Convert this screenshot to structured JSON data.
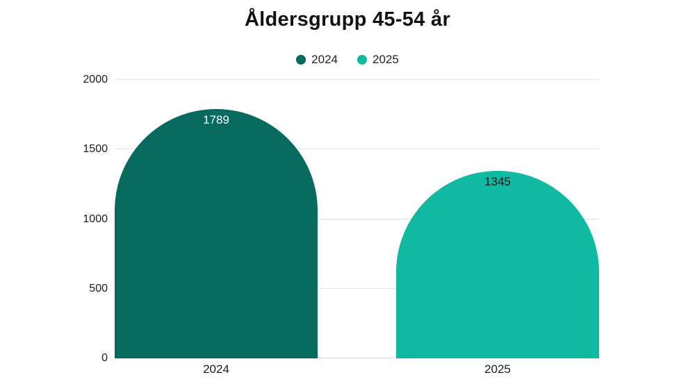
{
  "chart_data": {
    "type": "bar",
    "title": "Åldersgrupp 45-54 år",
    "categories": [
      "2024",
      "2025"
    ],
    "values": [
      1789,
      1345
    ],
    "bar_colors": [
      "#076A5F",
      "#10B9A2"
    ],
    "value_labels": [
      "1789",
      "1345"
    ],
    "value_label_colors": [
      "#ffffff",
      "#151515"
    ],
    "legend": [
      {
        "label": "2024",
        "color": "#076A5F"
      },
      {
        "label": "2025",
        "color": "#10B9A2"
      }
    ],
    "legend_position": "top",
    "xlabel": "",
    "ylabel": "",
    "ylim": [
      0,
      2000
    ],
    "yticks": [
      0,
      500,
      1000,
      1500,
      2000
    ],
    "grid": true,
    "bar_shape": "arch-top"
  },
  "colors": {
    "background": "#ffffff",
    "gridline": "#e4e4e4",
    "axis_text": "#1b1b1b",
    "title_text": "#121212"
  }
}
